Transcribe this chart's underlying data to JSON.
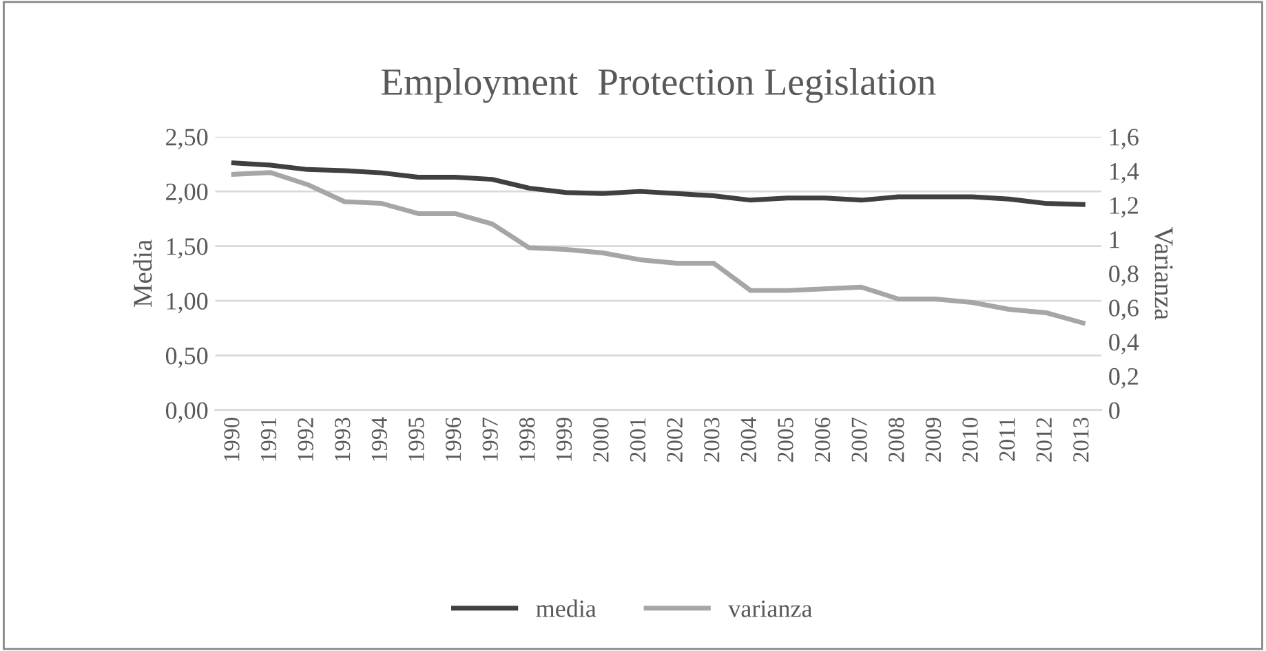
{
  "chart_data": {
    "type": "line",
    "title": "Employment  Protection Legislation",
    "ylabel": "Media",
    "y2label": "Varianza",
    "categories": [
      "1990",
      "1991",
      "1992",
      "1993",
      "1994",
      "1995",
      "1996",
      "1997",
      "1998",
      "1999",
      "2000",
      "2001",
      "2002",
      "2003",
      "2004",
      "2005",
      "2006",
      "2007",
      "2008",
      "2009",
      "2010",
      "2011",
      "2012",
      "2013"
    ],
    "series": [
      {
        "name": "media",
        "color": "#404040",
        "values": [
          2.26,
          2.24,
          2.2,
          2.19,
          2.17,
          2.13,
          2.13,
          2.11,
          2.03,
          1.99,
          1.98,
          2.0,
          1.98,
          1.96,
          1.92,
          1.94,
          1.94,
          1.92,
          1.95,
          1.95,
          1.95,
          1.93,
          1.89,
          1.88
        ]
      },
      {
        "name": "varianza",
        "color": "#a6a6a6",
        "axis": "y2",
        "values": [
          1.38,
          1.39,
          1.32,
          1.22,
          1.21,
          1.15,
          1.15,
          1.09,
          0.95,
          0.94,
          0.92,
          0.88,
          0.86,
          0.86,
          0.7,
          0.7,
          0.71,
          0.72,
          0.65,
          0.65,
          0.63,
          0.59,
          0.57,
          0.51
        ]
      }
    ],
    "ylim": [
      0,
      2.5
    ],
    "yticks": [
      {
        "value": 0,
        "label": "0,00"
      },
      {
        "value": 0.5,
        "label": "0,50"
      },
      {
        "value": 1,
        "label": "1,00"
      },
      {
        "value": 1.5,
        "label": "1,50"
      },
      {
        "value": 2,
        "label": "2,00"
      },
      {
        "value": 2.5,
        "label": "2,50"
      }
    ],
    "y2lim": [
      0,
      1.6
    ],
    "y2ticks": [
      0,
      {
        "value": 0.2,
        "label": "0,2"
      },
      {
        "value": 0.4,
        "label": "0,4"
      },
      {
        "value": 0.6,
        "label": "0,6"
      },
      {
        "value": 0.8,
        "label": "0,8"
      },
      1,
      {
        "value": 1.2,
        "label": "1,2"
      },
      {
        "value": 1.4,
        "label": "1,4"
      },
      {
        "value": 1.6,
        "label": "1,6"
      }
    ],
    "grid": "y",
    "legend": "bottom",
    "line_style": "solid",
    "marker": "none"
  }
}
